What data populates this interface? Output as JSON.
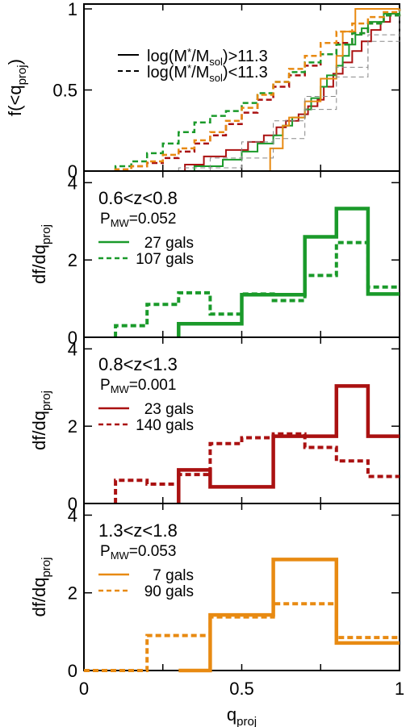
{
  "chart_data": [
    {
      "type": "line",
      "panel": "cumulative",
      "ylabel_main": "f(<q",
      "ylabel_sub": "proj",
      "ylabel_tail": ")",
      "xlim": [
        0,
        1
      ],
      "ylim": [
        0,
        1.03
      ],
      "yticks": [
        0,
        0.5,
        1
      ],
      "ytick_labels": [
        "0",
        "0.5",
        "1"
      ],
      "legend": [
        {
          "line": "solid",
          "text_pre": "log(M",
          "text_sub1": "*",
          "text_mid": "/M",
          "text_sub2": "sol",
          "text_post": ")>11.3"
        },
        {
          "line": "dashed",
          "text_pre": "log(M",
          "text_sub1": "*",
          "text_mid": "/M",
          "text_sub2": "sol",
          "text_post": ")<11.3"
        }
      ],
      "series": [
        {
          "color": "#aa1111",
          "style": "solid",
          "x": [
            0.32,
            0.38,
            0.45,
            0.52,
            0.57,
            0.61,
            0.64,
            0.68,
            0.71,
            0.74,
            0.76,
            0.79,
            0.82,
            0.85,
            0.88,
            0.91,
            0.94,
            0.97,
            1.0
          ],
          "y": [
            0.04,
            0.09,
            0.13,
            0.18,
            0.22,
            0.27,
            0.31,
            0.35,
            0.4,
            0.44,
            0.52,
            0.6,
            0.67,
            0.74,
            0.8,
            0.87,
            0.92,
            0.97,
            1.0
          ]
        },
        {
          "color": "#1a9a2a",
          "style": "solid",
          "x": [
            0.35,
            0.44,
            0.5,
            0.55,
            0.6,
            0.63,
            0.66,
            0.7,
            0.72,
            0.75,
            0.77,
            0.8,
            0.82,
            0.84,
            0.86,
            0.88,
            0.9,
            0.95,
            1.0
          ],
          "y": [
            0.03,
            0.07,
            0.12,
            0.17,
            0.22,
            0.28,
            0.33,
            0.38,
            0.45,
            0.52,
            0.59,
            0.65,
            0.71,
            0.78,
            0.84,
            0.88,
            0.92,
            0.97,
            1.0
          ]
        },
        {
          "color": "#e88a12",
          "style": "solid",
          "x": [
            0.59,
            0.63,
            0.65,
            0.7,
            0.75,
            0.8,
            0.82,
            0.86,
            0.9,
            1.0
          ],
          "y": [
            0.14,
            0.28,
            0.33,
            0.43,
            0.57,
            0.71,
            0.86,
            1.0,
            1.0,
            1.0
          ]
        },
        {
          "color": "#aa1111",
          "style": "dashed",
          "x": [
            0.1,
            0.15,
            0.2,
            0.25,
            0.3,
            0.35,
            0.4,
            0.45,
            0.5,
            0.55,
            0.6,
            0.65,
            0.7,
            0.75,
            0.8,
            0.85,
            0.9,
            0.95,
            1.0
          ],
          "y": [
            0.01,
            0.03,
            0.05,
            0.08,
            0.12,
            0.17,
            0.22,
            0.29,
            0.36,
            0.44,
            0.52,
            0.59,
            0.65,
            0.72,
            0.79,
            0.85,
            0.91,
            0.96,
            1.0
          ]
        },
        {
          "color": "#1a9a2a",
          "style": "dashed",
          "x": [
            0.1,
            0.15,
            0.2,
            0.25,
            0.3,
            0.35,
            0.4,
            0.45,
            0.5,
            0.55,
            0.6,
            0.65,
            0.7,
            0.75,
            0.8,
            0.85,
            0.9,
            0.95,
            1.0
          ],
          "y": [
            0.03,
            0.06,
            0.11,
            0.17,
            0.24,
            0.3,
            0.34,
            0.37,
            0.42,
            0.48,
            0.55,
            0.61,
            0.67,
            0.72,
            0.78,
            0.85,
            0.91,
            0.96,
            1.0
          ]
        },
        {
          "color": "#e88a12",
          "style": "dashed",
          "x": [
            0.1,
            0.15,
            0.2,
            0.25,
            0.3,
            0.35,
            0.4,
            0.45,
            0.5,
            0.55,
            0.6,
            0.65,
            0.7,
            0.75,
            0.8,
            0.85,
            0.9,
            0.95,
            1.0
          ],
          "y": [
            0.01,
            0.03,
            0.06,
            0.1,
            0.14,
            0.19,
            0.24,
            0.31,
            0.39,
            0.47,
            0.55,
            0.63,
            0.71,
            0.79,
            0.86,
            0.91,
            0.95,
            0.98,
            1.0
          ]
        },
        {
          "color": "#888888",
          "style": "dashed-thin",
          "x": [
            0.2,
            0.3,
            0.4,
            0.5,
            0.6,
            0.7,
            0.8,
            0.9,
            1.0
          ],
          "y": [
            0.0,
            0.02,
            0.08,
            0.18,
            0.31,
            0.46,
            0.64,
            0.84,
            1.0
          ]
        },
        {
          "color": "#888888",
          "style": "dashed-thin",
          "x": [
            0.3,
            0.4,
            0.5,
            0.6,
            0.7,
            0.8,
            0.9,
            1.0
          ],
          "y": [
            0.0,
            0.02,
            0.08,
            0.2,
            0.38,
            0.58,
            0.8,
            1.0
          ]
        }
      ]
    },
    {
      "type": "bar",
      "panel": "histogram",
      "color": "#1a9a2a",
      "xlim": [
        0,
        1
      ],
      "ylim": [
        0,
        4.3
      ],
      "yticks": [
        0,
        2,
        4
      ],
      "ytick_labels": [
        "0",
        "2",
        "4"
      ],
      "redshift_label": "0.6<z<0.8",
      "pmw_main": "P",
      "pmw_sub": "MW",
      "pmw_value": "=0.052",
      "legend": [
        {
          "line": "solid",
          "text": "27 gals"
        },
        {
          "line": "dashed",
          "text": "107 gals"
        }
      ],
      "ylabel_main": "df/dq",
      "ylabel_sub": "proj",
      "series": [
        {
          "style": "solid",
          "edges": [
            0.3,
            0.4,
            0.5,
            0.6,
            0.7,
            0.8,
            0.9,
            1.0
          ],
          "values": [
            0.35,
            0.35,
            1.1,
            1.1,
            2.6,
            3.33,
            1.12
          ]
        },
        {
          "style": "dashed",
          "edges": [
            0.1,
            0.2,
            0.3,
            0.4,
            0.5,
            0.6,
            0.7,
            0.8,
            0.9,
            1.0
          ],
          "values": [
            0.3,
            0.85,
            1.15,
            0.6,
            1.12,
            0.95,
            1.6,
            2.45,
            1.3
          ]
        }
      ]
    },
    {
      "type": "bar",
      "panel": "histogram",
      "color": "#aa1111",
      "xlim": [
        0,
        1
      ],
      "ylim": [
        0,
        4.3
      ],
      "yticks": [
        0,
        2,
        4
      ],
      "ytick_labels": [
        "0",
        "2",
        "4"
      ],
      "redshift_label": "0.8<z<1.3",
      "pmw_main": "P",
      "pmw_sub": "MW",
      "pmw_value": "=0.001",
      "legend": [
        {
          "line": "solid",
          "text": "23 gals"
        },
        {
          "line": "dashed",
          "text": "140 gals"
        }
      ],
      "ylabel_main": "df/dq",
      "ylabel_sub": "proj",
      "series": [
        {
          "style": "solid",
          "edges": [
            0.3,
            0.4,
            0.5,
            0.6,
            0.7,
            0.8,
            0.9,
            1.0
          ],
          "values": [
            0.87,
            0.43,
            0.43,
            1.74,
            1.74,
            3.04,
            1.74
          ]
        },
        {
          "style": "dashed",
          "edges": [
            0.1,
            0.2,
            0.3,
            0.4,
            0.5,
            0.6,
            0.7,
            0.8,
            0.9,
            1.0
          ],
          "values": [
            0.6,
            0.5,
            0.75,
            1.55,
            1.7,
            1.8,
            1.45,
            1.1,
            0.7
          ]
        }
      ]
    },
    {
      "type": "bar",
      "panel": "histogram",
      "color": "#e88a12",
      "xlim": [
        0,
        1
      ],
      "ylim": [
        0,
        4.3
      ],
      "yticks": [
        0,
        2,
        4
      ],
      "ytick_labels": [
        "0",
        "2",
        "4"
      ],
      "xticks": [
        0,
        0.5,
        1
      ],
      "xtick_labels": [
        "0",
        "0.5",
        "1"
      ],
      "xlabel_main": "q",
      "xlabel_sub": "proj",
      "redshift_label": "1.3<z<1.8",
      "pmw_main": "P",
      "pmw_sub": "MW",
      "pmw_value": "=0.053",
      "legend": [
        {
          "line": "solid",
          "text": "7 gals"
        },
        {
          "line": "dashed",
          "text": "90 gals"
        }
      ],
      "ylabel_main": "df/dq",
      "ylabel_sub": "proj",
      "series": [
        {
          "style": "solid",
          "edges": [
            0.3,
            0.4,
            0.6,
            0.8,
            1.0
          ],
          "values": [
            0.0,
            1.43,
            2.86,
            0.71
          ]
        },
        {
          "style": "dashed",
          "edges": [
            0.0,
            0.2,
            0.4,
            0.6,
            0.8,
            1.0
          ],
          "values": [
            0.0,
            0.9,
            1.38,
            1.72,
            0.85
          ]
        }
      ]
    }
  ]
}
